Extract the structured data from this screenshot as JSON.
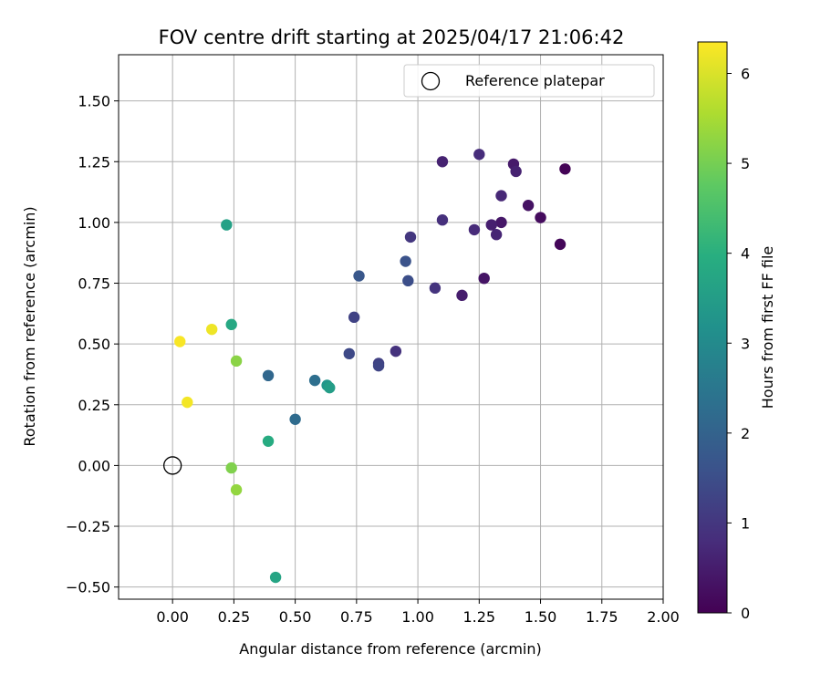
{
  "chart_data": {
    "type": "scatter",
    "title": "FOV centre drift starting at 2025/04/17 21:06:42",
    "xlabel": "Angular distance from reference (arcmin)",
    "ylabel": "Rotation from reference (arcmin)",
    "xlim": [
      -0.22,
      2.0
    ],
    "ylim": [
      -0.55,
      1.69
    ],
    "xticks": [
      "0.00",
      "0.25",
      "0.50",
      "0.75",
      "1.00",
      "1.25",
      "1.50",
      "1.75",
      "2.00"
    ],
    "yticks": [
      "−0.50",
      "−0.25",
      "0.00",
      "0.25",
      "0.50",
      "0.75",
      "1.00",
      "1.25",
      "1.50"
    ],
    "grid": true,
    "legend": {
      "position": "top-right",
      "label": "Reference platepar",
      "marker": "hollow-circle"
    },
    "reference_point": {
      "x": 0.0,
      "y": 0.0
    },
    "colorbar": {
      "label": "Hours from first FF file",
      "range": [
        0,
        6.35
      ],
      "ticks": [
        "0",
        "1",
        "2",
        "3",
        "4",
        "5",
        "6"
      ],
      "colormap": "viridis"
    },
    "points": [
      {
        "x": 1.6,
        "y": 1.22,
        "c": 0.05
      },
      {
        "x": 1.58,
        "y": 0.91,
        "c": 0.1
      },
      {
        "x": 1.5,
        "y": 1.02,
        "c": 0.2
      },
      {
        "x": 1.45,
        "y": 1.07,
        "c": 0.3
      },
      {
        "x": 1.39,
        "y": 1.24,
        "c": 0.45
      },
      {
        "x": 1.4,
        "y": 1.21,
        "c": 0.6
      },
      {
        "x": 1.34,
        "y": 1.11,
        "c": 0.7
      },
      {
        "x": 1.34,
        "y": 1.0,
        "c": 0.4
      },
      {
        "x": 1.3,
        "y": 0.99,
        "c": 0.55
      },
      {
        "x": 1.32,
        "y": 0.95,
        "c": 0.65
      },
      {
        "x": 1.27,
        "y": 0.77,
        "c": 0.35
      },
      {
        "x": 1.25,
        "y": 1.28,
        "c": 0.8
      },
      {
        "x": 1.23,
        "y": 0.97,
        "c": 0.75
      },
      {
        "x": 1.18,
        "y": 0.7,
        "c": 0.5
      },
      {
        "x": 1.1,
        "y": 1.25,
        "c": 0.6
      },
      {
        "x": 1.1,
        "y": 1.01,
        "c": 0.85
      },
      {
        "x": 1.07,
        "y": 0.73,
        "c": 0.95
      },
      {
        "x": 0.97,
        "y": 0.94,
        "c": 1.0
      },
      {
        "x": 0.96,
        "y": 0.76,
        "c": 1.5
      },
      {
        "x": 0.95,
        "y": 0.84,
        "c": 1.6
      },
      {
        "x": 0.91,
        "y": 0.47,
        "c": 0.9
      },
      {
        "x": 0.84,
        "y": 0.42,
        "c": 1.2
      },
      {
        "x": 0.84,
        "y": 0.41,
        "c": 1.3
      },
      {
        "x": 0.76,
        "y": 0.78,
        "c": 1.7
      },
      {
        "x": 0.74,
        "y": 0.61,
        "c": 1.25
      },
      {
        "x": 0.72,
        "y": 0.46,
        "c": 1.4
      },
      {
        "x": 0.63,
        "y": 0.33,
        "c": 3.3
      },
      {
        "x": 0.64,
        "y": 0.32,
        "c": 3.5
      },
      {
        "x": 0.58,
        "y": 0.35,
        "c": 2.3
      },
      {
        "x": 0.5,
        "y": 0.19,
        "c": 2.2
      },
      {
        "x": 0.39,
        "y": 0.37,
        "c": 2.1
      },
      {
        "x": 0.39,
        "y": 0.1,
        "c": 3.9
      },
      {
        "x": 0.42,
        "y": -0.46,
        "c": 3.7
      },
      {
        "x": 0.26,
        "y": 0.43,
        "c": 5.2
      },
      {
        "x": 0.24,
        "y": 0.58,
        "c": 3.8
      },
      {
        "x": 0.22,
        "y": 0.99,
        "c": 3.6
      },
      {
        "x": 0.24,
        "y": -0.01,
        "c": 5.1
      },
      {
        "x": 0.26,
        "y": -0.1,
        "c": 5.3
      },
      {
        "x": 0.16,
        "y": 0.56,
        "c": 6.2
      },
      {
        "x": 0.03,
        "y": 0.51,
        "c": 6.3
      },
      {
        "x": 0.06,
        "y": 0.26,
        "c": 6.25
      }
    ]
  }
}
